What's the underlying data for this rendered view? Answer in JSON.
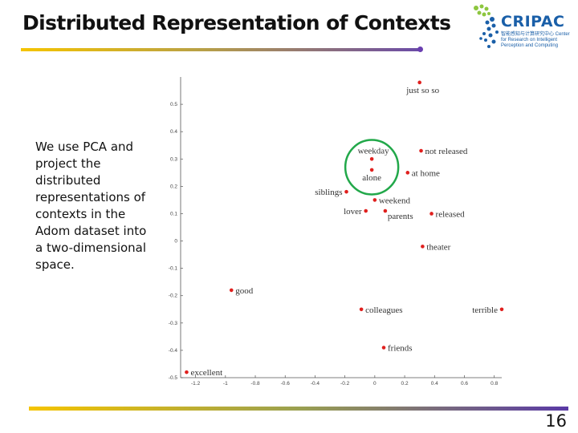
{
  "slide": {
    "title": "Distributed Representation of Contexts",
    "description": "We use PCA and project the distributed representations of contexts in the Adom dataset into a two-dimensional space.",
    "page_number": "16"
  },
  "logo": {
    "name": "CRIPAC",
    "subtitle": "智能感知与计算研究中心 Center for Research on Intelligent Perception and Computing"
  },
  "colors": {
    "accent_yellow": "#f5c400",
    "accent_purple": "#6a3fb0",
    "point": "#e0201e",
    "highlight_circle": "#22a84a",
    "logo_blue": "#1a5fa8"
  },
  "chart_data": {
    "type": "scatter",
    "xlim": [
      -1.3,
      0.85
    ],
    "ylim": [
      -0.5,
      0.6
    ],
    "xticks": [
      -1.2,
      -1,
      -0.8,
      -0.6,
      -0.4,
      -0.2,
      0,
      0.2,
      0.4,
      0.6,
      0.8
    ],
    "yticks": [
      -0.5,
      -0.4,
      -0.3,
      -0.2,
      -0.1,
      0,
      0.1,
      0.2,
      0.3,
      0.4,
      0.5
    ],
    "xtick_labels": [
      "-1.2",
      "-1",
      "-0.8",
      "-0.6",
      "-0.4",
      "-0.2",
      "0",
      "0.2",
      "0.4",
      "0.6",
      "0.8"
    ],
    "ytick_labels": [
      "-0.5",
      "-0.4",
      "-0.3",
      "-0.2",
      "-0.1",
      "0",
      "0.1",
      "0.2",
      "0.3",
      "0.4",
      "0.5"
    ],
    "grid": false,
    "points": [
      {
        "label": "just so so",
        "x": 0.3,
        "y": 0.58,
        "anchor": "below-left"
      },
      {
        "label": "not released",
        "x": 0.31,
        "y": 0.33,
        "anchor": "right"
      },
      {
        "label": "weekday",
        "x": -0.02,
        "y": 0.3,
        "anchor": "above"
      },
      {
        "label": "alone",
        "x": -0.02,
        "y": 0.26,
        "anchor": "below"
      },
      {
        "label": "at home",
        "x": 0.22,
        "y": 0.25,
        "anchor": "right"
      },
      {
        "label": "siblings",
        "x": -0.19,
        "y": 0.18,
        "anchor": "left"
      },
      {
        "label": "weekend",
        "x": 0.0,
        "y": 0.15,
        "anchor": "right"
      },
      {
        "label": "lover",
        "x": -0.06,
        "y": 0.11,
        "anchor": "left"
      },
      {
        "label": "parents",
        "x": 0.07,
        "y": 0.11,
        "anchor": "below-right"
      },
      {
        "label": "released",
        "x": 0.38,
        "y": 0.1,
        "anchor": "right"
      },
      {
        "label": "theater",
        "x": 0.32,
        "y": -0.02,
        "anchor": "right"
      },
      {
        "label": "good",
        "x": -0.96,
        "y": -0.18,
        "anchor": "right"
      },
      {
        "label": "colleagues",
        "x": -0.09,
        "y": -0.25,
        "anchor": "right"
      },
      {
        "label": "terrible",
        "x": 0.85,
        "y": -0.25,
        "anchor": "left"
      },
      {
        "label": "friends",
        "x": 0.06,
        "y": -0.39,
        "anchor": "right"
      },
      {
        "label": "excellent",
        "x": -1.26,
        "y": -0.48,
        "anchor": "right"
      }
    ],
    "highlight_circle": {
      "center_x": -0.02,
      "center_y": 0.27,
      "note": "green circle around weekday / alone"
    }
  }
}
